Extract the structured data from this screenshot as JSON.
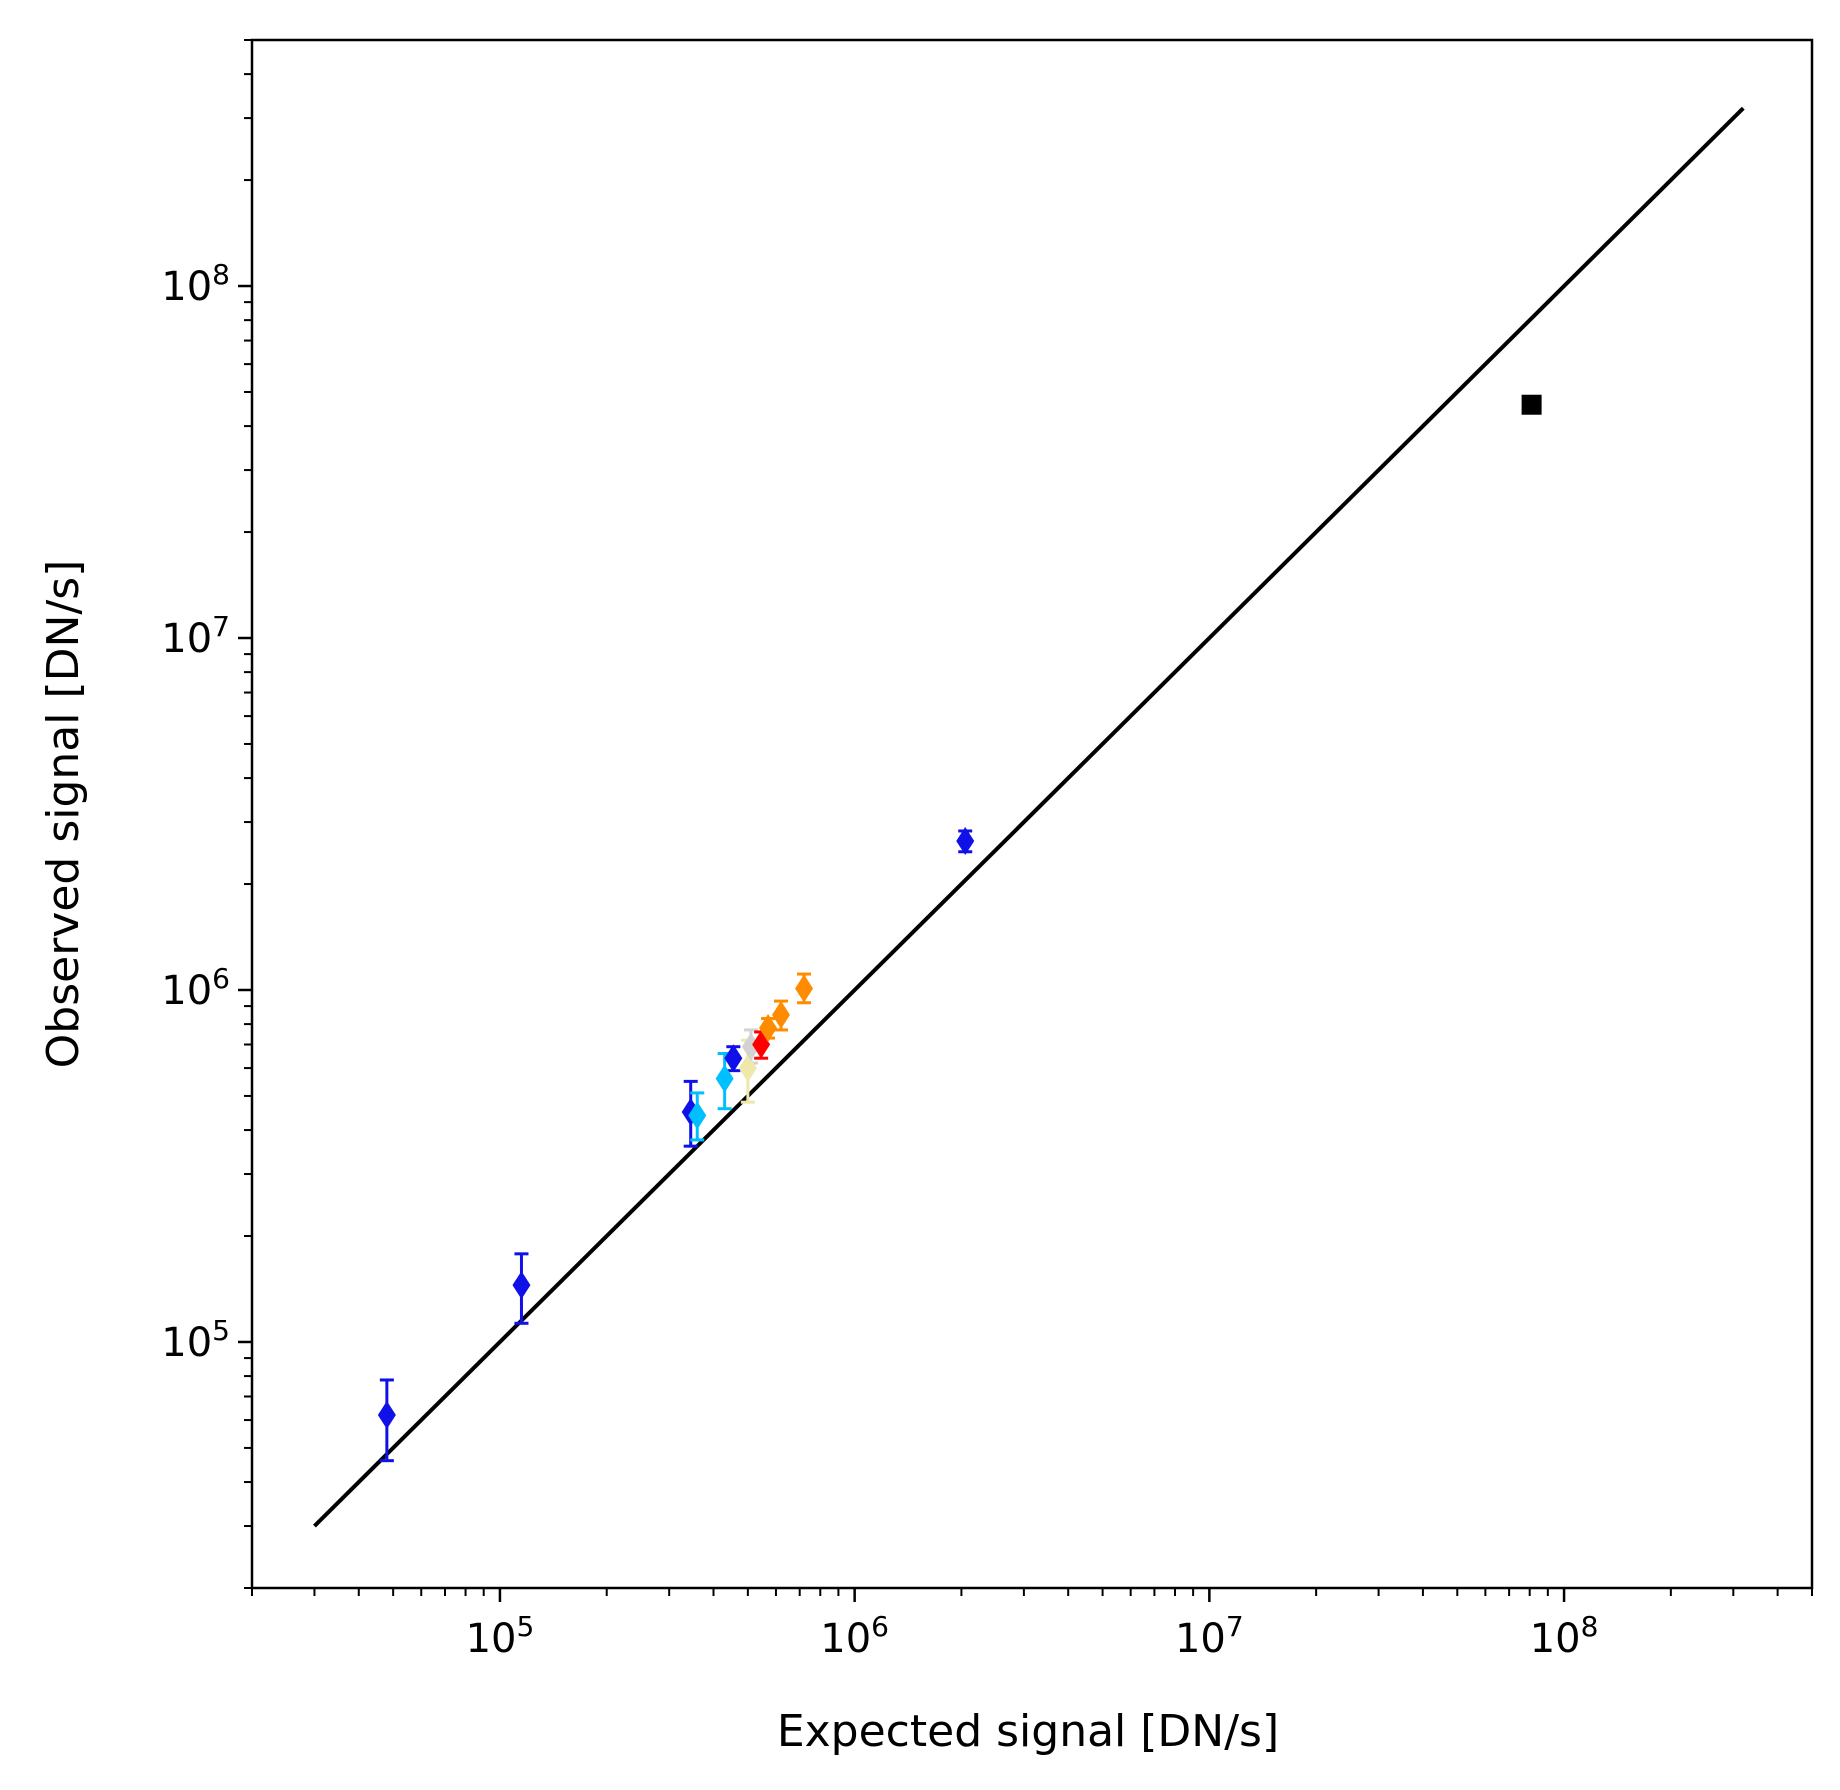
{
  "chart_data": {
    "type": "scatter",
    "title": "",
    "xlabel": "Expected signal [DN/s]",
    "ylabel": "Observed signal [DN/s]",
    "x_scale": "log",
    "y_scale": "log",
    "xlim": [
      20000,
      500000000
    ],
    "ylim": [
      20000,
      500000000
    ],
    "grid": false,
    "legend": "none",
    "x_ticks": [
      {
        "base": "10",
        "exp": "5",
        "value": 100000
      },
      {
        "base": "10",
        "exp": "6",
        "value": 1000000
      },
      {
        "base": "10",
        "exp": "7",
        "value": 10000000
      },
      {
        "base": "10",
        "exp": "8",
        "value": 100000000
      }
    ],
    "y_ticks": [
      {
        "base": "10",
        "exp": "5",
        "value": 100000
      },
      {
        "base": "10",
        "exp": "6",
        "value": 1000000
      },
      {
        "base": "10",
        "exp": "7",
        "value": 10000000
      },
      {
        "base": "10",
        "exp": "8",
        "value": 100000000
      }
    ],
    "reference_line": {
      "type": "y=x",
      "x_range": [
        30000,
        320000000
      ],
      "color": "#000000"
    },
    "points": [
      {
        "x": 48000,
        "y": 62000,
        "yerr_low": 46000,
        "yerr_high": 78000,
        "color": "#1010e8",
        "marker": "diamond"
      },
      {
        "x": 115000,
        "y": 145000,
        "yerr_low": 113000,
        "yerr_high": 178000,
        "color": "#1010e8",
        "marker": "diamond"
      },
      {
        "x": 345000,
        "y": 450000,
        "yerr_low": 360000,
        "yerr_high": 550000,
        "color": "#1010e8",
        "marker": "diamond"
      },
      {
        "x": 360000,
        "y": 440000,
        "yerr_low": 375000,
        "yerr_high": 510000,
        "color": "#00bfff",
        "marker": "diamond"
      },
      {
        "x": 430000,
        "y": 560000,
        "yerr_low": 460000,
        "yerr_high": 660000,
        "color": "#00bfff",
        "marker": "diamond"
      },
      {
        "x": 455000,
        "y": 640000,
        "yerr_low": 590000,
        "yerr_high": 690000,
        "color": "#1010e8",
        "marker": "diamond"
      },
      {
        "x": 500000,
        "y": 600000,
        "yerr_low": 480000,
        "yerr_high": 720000,
        "color": "#eee8aa",
        "marker": "diamond"
      },
      {
        "x": 510000,
        "y": 690000,
        "yerr_low": 620000,
        "yerr_high": 770000,
        "color": "#d3d3d3",
        "marker": "diamond"
      },
      {
        "x": 545000,
        "y": 700000,
        "yerr_low": 640000,
        "yerr_high": 760000,
        "color": "#ff0000",
        "marker": "diamond"
      },
      {
        "x": 570000,
        "y": 780000,
        "yerr_low": 730000,
        "yerr_high": 830000,
        "color": "#ff8c00",
        "marker": "diamond"
      },
      {
        "x": 620000,
        "y": 850000,
        "yerr_low": 770000,
        "yerr_high": 930000,
        "color": "#ff8c00",
        "marker": "diamond"
      },
      {
        "x": 720000,
        "y": 1010000,
        "yerr_low": 920000,
        "yerr_high": 1110000,
        "color": "#ff8c00",
        "marker": "diamond"
      },
      {
        "x": 2050000,
        "y": 2650000,
        "yerr_low": 2470000,
        "yerr_high": 2830000,
        "color": "#1010e8",
        "marker": "diamond"
      },
      {
        "x": 81000000,
        "y": 46000000,
        "yerr_low": 46000000,
        "yerr_high": 46000000,
        "color": "#000000",
        "marker": "square"
      }
    ]
  }
}
